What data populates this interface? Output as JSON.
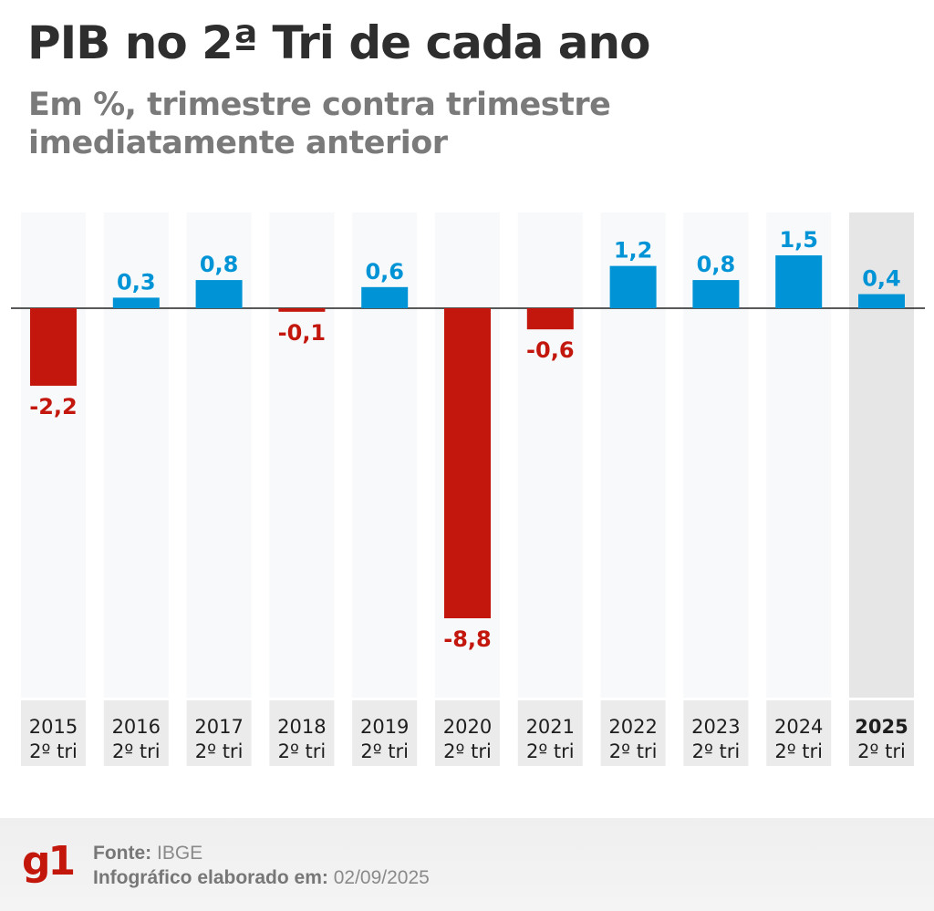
{
  "header": {
    "title": "PIB no 2ª Tri de cada ano",
    "subtitle": "Em %, trimestre contra trimestre imediatamente anterior"
  },
  "colors": {
    "positive": "#0094d6",
    "negative": "#c3170d",
    "axis": "#222222",
    "column_bg": "#f7f9fb",
    "highlight_bg": "#e6e6e6",
    "label_bg": "#ebebeb"
  },
  "chart_data": {
    "type": "bar",
    "title": "PIB no 2ª Tri de cada ano",
    "subtitle": "Em %, trimestre contra trimestre imediatamente anterior",
    "xlabel": "",
    "ylabel": "%",
    "categories": [
      "2015",
      "2016",
      "2017",
      "2018",
      "2019",
      "2020",
      "2021",
      "2022",
      "2023",
      "2024",
      "2025"
    ],
    "category_sublabel": "2º tri",
    "values": [
      -2.2,
      0.3,
      0.8,
      -0.1,
      0.6,
      -8.8,
      -0.6,
      1.2,
      0.8,
      1.5,
      0.4
    ],
    "value_labels": [
      "-2,2",
      "0,3",
      "0,8",
      "-0,1",
      "0,6",
      "-8,8",
      "-0,6",
      "1,2",
      "0,8",
      "1,5",
      "0,4"
    ],
    "highlighted_category": "2025",
    "ylim": [
      -8.8,
      2.7
    ],
    "grid": false,
    "legend": "none"
  },
  "footer": {
    "logo": "g1",
    "source_label": "Fonte:",
    "source_value": "IBGE",
    "date_label": "Infográfico elaborado em:",
    "date_value": "02/09/2025"
  }
}
